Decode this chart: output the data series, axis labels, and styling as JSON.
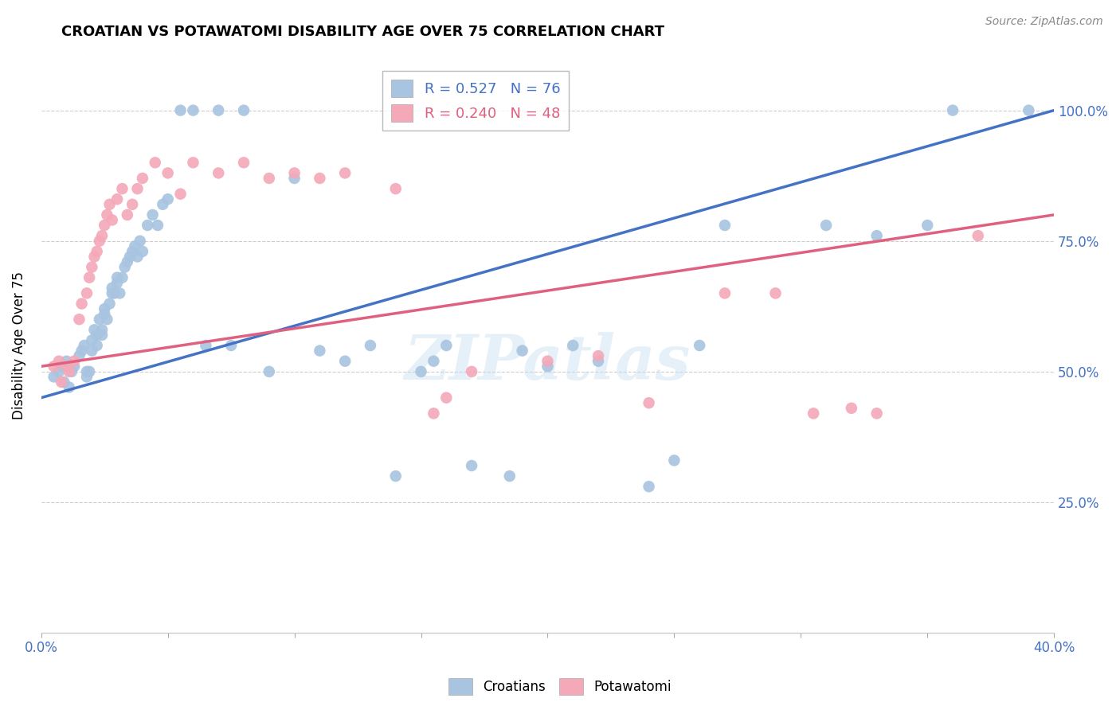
{
  "title": "CROATIAN VS POTAWATOMI DISABILITY AGE OVER 75 CORRELATION CHART",
  "source": "Source: ZipAtlas.com",
  "ylabel": "Disability Age Over 75",
  "right_yticks": [
    "100.0%",
    "75.0%",
    "50.0%",
    "25.0%"
  ],
  "right_ytick_vals": [
    1.0,
    0.75,
    0.5,
    0.25
  ],
  "legend_blue": "R = 0.527   N = 76",
  "legend_pink": "R = 0.240   N = 48",
  "watermark": "ZIPatlas",
  "croatian_color": "#a8c4e0",
  "potawatomi_color": "#f4a8b8",
  "line_blue": "#4472c4",
  "line_pink": "#e06080",
  "xlim": [
    0.0,
    0.4
  ],
  "ylim": [
    0.0,
    1.1
  ],
  "croatian_points_x": [
    0.005,
    0.007,
    0.008,
    0.009,
    0.01,
    0.011,
    0.012,
    0.013,
    0.015,
    0.016,
    0.017,
    0.018,
    0.018,
    0.019,
    0.02,
    0.02,
    0.021,
    0.022,
    0.022,
    0.023,
    0.024,
    0.024,
    0.025,
    0.025,
    0.026,
    0.027,
    0.028,
    0.028,
    0.029,
    0.03,
    0.03,
    0.031,
    0.032,
    0.033,
    0.034,
    0.035,
    0.036,
    0.037,
    0.038,
    0.039,
    0.04,
    0.042,
    0.044,
    0.046,
    0.048,
    0.05,
    0.055,
    0.06,
    0.065,
    0.07,
    0.075,
    0.08,
    0.09,
    0.1,
    0.11,
    0.12,
    0.13,
    0.14,
    0.15,
    0.155,
    0.16,
    0.17,
    0.185,
    0.19,
    0.2,
    0.21,
    0.22,
    0.24,
    0.25,
    0.26,
    0.27,
    0.31,
    0.33,
    0.35,
    0.36,
    0.39
  ],
  "croatian_points_y": [
    0.49,
    0.5,
    0.51,
    0.48,
    0.52,
    0.47,
    0.5,
    0.51,
    0.53,
    0.54,
    0.55,
    0.5,
    0.49,
    0.5,
    0.54,
    0.56,
    0.58,
    0.55,
    0.57,
    0.6,
    0.58,
    0.57,
    0.62,
    0.61,
    0.6,
    0.63,
    0.65,
    0.66,
    0.65,
    0.67,
    0.68,
    0.65,
    0.68,
    0.7,
    0.71,
    0.72,
    0.73,
    0.74,
    0.72,
    0.75,
    0.73,
    0.78,
    0.8,
    0.78,
    0.82,
    0.83,
    1.0,
    1.0,
    0.55,
    1.0,
    0.55,
    1.0,
    0.5,
    0.87,
    0.54,
    0.52,
    0.55,
    0.3,
    0.5,
    0.52,
    0.55,
    0.32,
    0.3,
    0.54,
    0.51,
    0.55,
    0.52,
    0.28,
    0.33,
    0.55,
    0.78,
    0.78,
    0.76,
    0.78,
    1.0,
    1.0
  ],
  "potawatomi_points_x": [
    0.005,
    0.007,
    0.008,
    0.01,
    0.011,
    0.013,
    0.015,
    0.016,
    0.018,
    0.019,
    0.02,
    0.021,
    0.022,
    0.023,
    0.024,
    0.025,
    0.026,
    0.027,
    0.028,
    0.03,
    0.032,
    0.034,
    0.036,
    0.038,
    0.04,
    0.045,
    0.05,
    0.055,
    0.06,
    0.07,
    0.08,
    0.09,
    0.1,
    0.11,
    0.12,
    0.14,
    0.155,
    0.16,
    0.17,
    0.2,
    0.22,
    0.24,
    0.27,
    0.29,
    0.305,
    0.32,
    0.33,
    0.37
  ],
  "potawatomi_points_y": [
    0.51,
    0.52,
    0.48,
    0.51,
    0.5,
    0.52,
    0.6,
    0.63,
    0.65,
    0.68,
    0.7,
    0.72,
    0.73,
    0.75,
    0.76,
    0.78,
    0.8,
    0.82,
    0.79,
    0.83,
    0.85,
    0.8,
    0.82,
    0.85,
    0.87,
    0.9,
    0.88,
    0.84,
    0.9,
    0.88,
    0.9,
    0.87,
    0.88,
    0.87,
    0.88,
    0.85,
    0.42,
    0.45,
    0.5,
    0.52,
    0.53,
    0.44,
    0.65,
    0.65,
    0.42,
    0.43,
    0.42,
    0.76
  ]
}
